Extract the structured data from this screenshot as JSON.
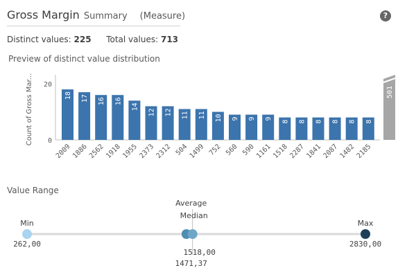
{
  "header": {
    "field_name": "Gross Margin",
    "view": "Summary",
    "field_type": "(Measure)",
    "help_label": "?"
  },
  "stats": {
    "distinct_label": "Distinct values:",
    "distinct_value": "225",
    "total_label": "Total values:",
    "total_value": "713"
  },
  "preview_label": "Preview of distinct value distribution",
  "chart_data": {
    "type": "bar",
    "categories": [
      "2009",
      "1886",
      "2562",
      "1918",
      "1955",
      "2373",
      "2312",
      "504",
      "1499",
      "752",
      "560",
      "590",
      "1161",
      "1518",
      "2287",
      "1841",
      "2087",
      "1482",
      "2185"
    ],
    "values": [
      18,
      17,
      16,
      16,
      14,
      12,
      12,
      11,
      11,
      10,
      9,
      9,
      9,
      8,
      8,
      8,
      8,
      8,
      8
    ],
    "ylabel": "Count of Gross Mar...",
    "yticks": [
      "20",
      "0"
    ],
    "ylim": [
      0,
      20
    ],
    "overflow_bar": {
      "value": 501,
      "label": "501",
      "color": "#a6a6a6"
    },
    "bar_color": "#3c74ad"
  },
  "value_range": {
    "label": "Value Range",
    "min_label": "Min",
    "min_value": "262,00",
    "max_label": "Max",
    "max_value": "2830,00",
    "average_label": "Average",
    "median_label": "Median",
    "average_value": "1518,00",
    "median_value": "1471,37",
    "min_num": 262,
    "max_num": 2830,
    "average_num": 1518,
    "median_num": 1471.37,
    "colors": {
      "min": "#a9d3ef",
      "average": "#6ea6c8",
      "median": "#4f8eb0",
      "max": "#1e3f58",
      "track": "#d9d9d9"
    }
  }
}
